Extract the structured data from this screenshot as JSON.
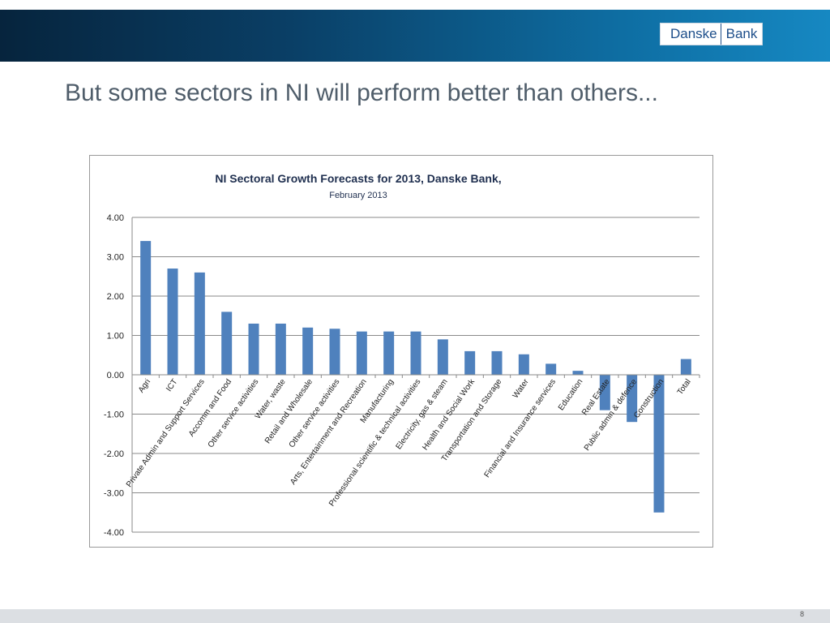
{
  "slide": {
    "title": "But some sectors in NI will perform better than others...",
    "page_number": "8"
  },
  "logo": {
    "left_text": "Danske",
    "right_text": "Bank"
  },
  "colors": {
    "bar": "#4f81bd",
    "header_dark": "#06243d",
    "header_light": "#1688c2",
    "title": "#4f5d6a"
  },
  "chart_data": {
    "type": "bar",
    "title": "NI Sectoral Growth Forecasts for 2013, Danske Bank,",
    "subtitle": "February 2013",
    "ylim": [
      -4,
      4
    ],
    "yticks": [
      "4.00",
      "3.00",
      "2.00",
      "1.00",
      "0.00",
      "-1.00",
      "-2.00",
      "-3.00",
      "-4.00"
    ],
    "ytick_values": [
      4,
      3,
      2,
      1,
      0,
      -1,
      -2,
      -3,
      -4
    ],
    "grid": true,
    "categories": [
      "Agri",
      "ICT",
      "Private Admin and Support Services",
      "Accomm and Food",
      "Other service activities",
      "Water, waste",
      "Retail and Wholesale",
      "Other service activities",
      "Arts, Entertainment and Recreation",
      "Manufacturing",
      "Professional scientific & technical activities",
      "Electricity, gas & steam",
      "Health and Social Work",
      "Transportation and Storage",
      "Water",
      "Financial and Insurance services",
      "Education",
      "Real Estate",
      "Public admin & defence",
      "Construction",
      "Total"
    ],
    "values": [
      3.4,
      2.7,
      2.6,
      1.6,
      1.3,
      1.3,
      1.2,
      1.17,
      1.1,
      1.1,
      1.1,
      0.9,
      0.6,
      0.6,
      0.52,
      0.28,
      0.1,
      -0.9,
      -1.2,
      -3.5,
      0.4
    ]
  }
}
